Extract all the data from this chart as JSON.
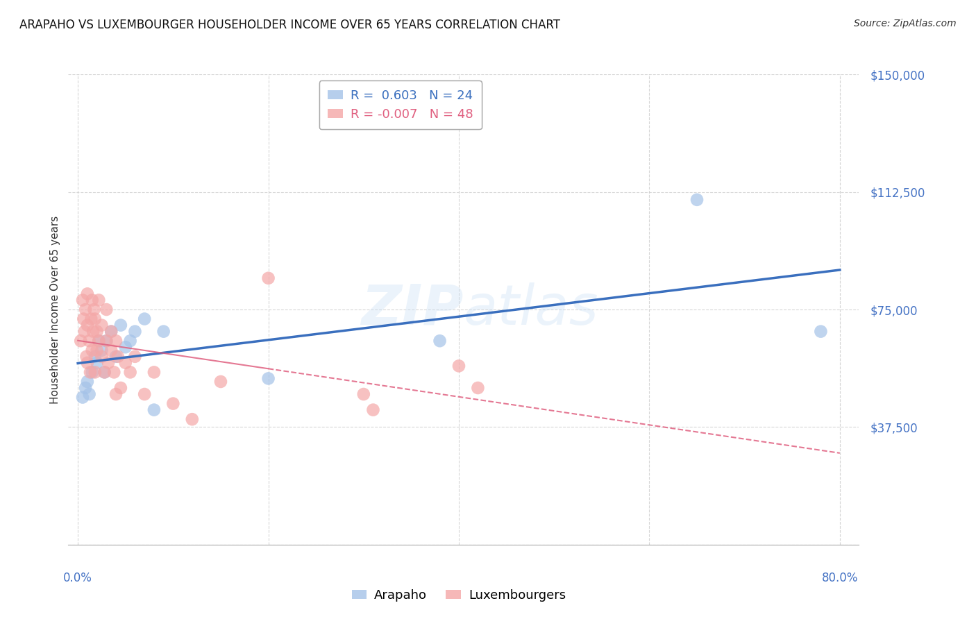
{
  "title": "ARAPAHO VS LUXEMBOURGER HOUSEHOLDER INCOME OVER 65 YEARS CORRELATION CHART",
  "source": "Source: ZipAtlas.com",
  "ylabel": "Householder Income Over 65 years",
  "yticks": [
    0,
    37500,
    75000,
    112500,
    150000
  ],
  "ytick_labels": [
    "",
    "$37,500",
    "$75,000",
    "$112,500",
    "$150,000"
  ],
  "xlim": [
    0.0,
    0.8
  ],
  "ylim": [
    0,
    150000
  ],
  "arapaho_R": 0.603,
  "arapaho_N": 24,
  "luxembourger_R": -0.007,
  "luxembourger_N": 48,
  "arapaho_color": "#a4c2e8",
  "luxembourger_color": "#f4a7a7",
  "arapaho_line_color": "#3a6fbe",
  "luxembourger_line_color": "#e06080",
  "background_color": "#ffffff",
  "arapaho_x": [
    0.005,
    0.008,
    0.01,
    0.012,
    0.015,
    0.018,
    0.02,
    0.022,
    0.025,
    0.028,
    0.03,
    0.035,
    0.04,
    0.045,
    0.05,
    0.055,
    0.06,
    0.07,
    0.08,
    0.09,
    0.2,
    0.38,
    0.65,
    0.78
  ],
  "arapaho_y": [
    47000,
    50000,
    52000,
    48000,
    55000,
    60000,
    58000,
    65000,
    62000,
    55000,
    65000,
    68000,
    60000,
    70000,
    63000,
    65000,
    68000,
    72000,
    43000,
    68000,
    53000,
    65000,
    110000,
    68000
  ],
  "luxembourger_x": [
    0.003,
    0.005,
    0.006,
    0.007,
    0.008,
    0.009,
    0.01,
    0.01,
    0.01,
    0.012,
    0.013,
    0.014,
    0.015,
    0.015,
    0.016,
    0.017,
    0.018,
    0.018,
    0.02,
    0.02,
    0.022,
    0.022,
    0.025,
    0.025,
    0.028,
    0.03,
    0.03,
    0.032,
    0.035,
    0.035,
    0.038,
    0.04,
    0.04,
    0.042,
    0.045,
    0.05,
    0.055,
    0.06,
    0.07,
    0.08,
    0.1,
    0.12,
    0.15,
    0.2,
    0.3,
    0.31,
    0.4,
    0.42
  ],
  "luxembourger_y": [
    65000,
    78000,
    72000,
    68000,
    75000,
    60000,
    80000,
    70000,
    58000,
    65000,
    55000,
    72000,
    62000,
    78000,
    68000,
    75000,
    55000,
    72000,
    68000,
    62000,
    78000,
    65000,
    70000,
    60000,
    55000,
    65000,
    75000,
    58000,
    68000,
    62000,
    55000,
    65000,
    48000,
    60000,
    50000,
    58000,
    55000,
    60000,
    48000,
    55000,
    45000,
    40000,
    52000,
    85000,
    48000,
    43000,
    57000,
    50000
  ]
}
